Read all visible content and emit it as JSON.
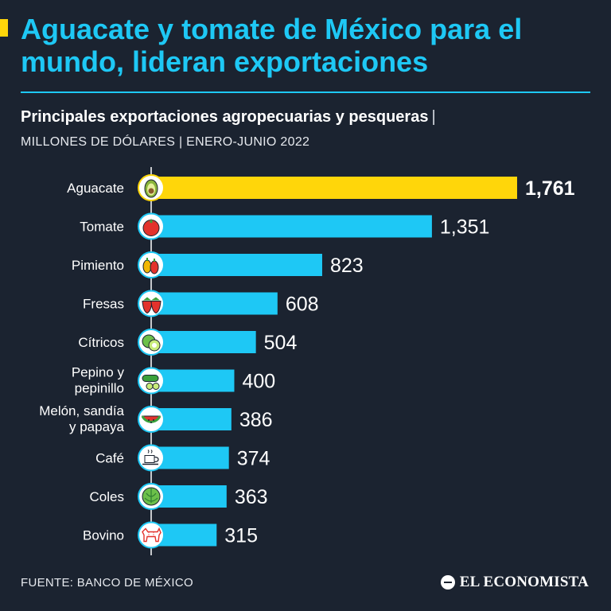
{
  "header": {
    "title": "Aguacate y tomate de México para el mundo, lideran exportaciones",
    "subtitle": "Principales exportaciones agropecuarias y pesqueras",
    "subtitle_separator": "|",
    "units": "MILLONES DE DÓLARES | ENERO-JUNIO 2022"
  },
  "colors": {
    "accent": "#ffd60a",
    "bar": "#1ec8f5",
    "highlight": "#ffd60a",
    "background": "#1b2330"
  },
  "chart_data": {
    "type": "bar",
    "orientation": "horizontal",
    "categories": [
      [
        "Aguacate"
      ],
      [
        "Tomate"
      ],
      [
        "Pimiento"
      ],
      [
        "Fresas"
      ],
      [
        "Cítricos"
      ],
      [
        "Pepino y",
        "pepinillo"
      ],
      [
        "Melón, sandía",
        "y papaya"
      ],
      [
        "Café"
      ],
      [
        "Coles"
      ],
      [
        "Bovino"
      ]
    ],
    "values": [
      1761,
      1351,
      823,
      608,
      504,
      400,
      386,
      374,
      363,
      315
    ],
    "value_labels": [
      "1,761",
      "1,351",
      "823",
      "608",
      "504",
      "400",
      "386",
      "374",
      "363",
      "315"
    ],
    "icons": [
      "avocado-icon",
      "tomato-icon",
      "pepper-icon",
      "strawberry-icon",
      "lime-icon",
      "cucumber-icon",
      "watermelon-icon",
      "coffee-cup-icon",
      "cabbage-icon",
      "cow-icon"
    ],
    "highlight_index": 0,
    "xlim": [
      0,
      1761
    ],
    "grid": false,
    "legend": "none"
  },
  "footer": {
    "source": "FUENTE: BANCO DE MÉXICO",
    "brand": "EL ECONOMISTA"
  }
}
